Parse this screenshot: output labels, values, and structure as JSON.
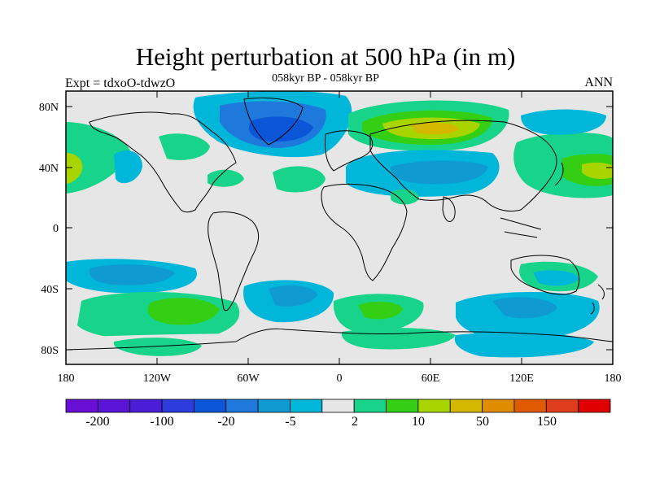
{
  "title": "Height perturbation at 500 hPa (in m)",
  "subtitle": "058kyr BP - 058kyr BP",
  "left_label": "Expt = tdxoO-tdwzO",
  "right_label": "ANN",
  "lat_ticks": [
    "80N",
    "40N",
    "0",
    "40S",
    "80S"
  ],
  "lon_ticks": [
    "180",
    "120W",
    "60W",
    "0",
    "60E",
    "120E",
    "180"
  ],
  "colorbar": {
    "colors": [
      "#6a0fd6",
      "#5a14d8",
      "#4a1ed6",
      "#2d3cdc",
      "#0a55d8",
      "#1f78dc",
      "#0f9ad2",
      "#00b7d9",
      "#e6e6e6",
      "#18d48a",
      "#34cf14",
      "#a8d400",
      "#d4b800",
      "#e08c00",
      "#e05a00",
      "#e03c1e",
      "#e00000"
    ],
    "labels": [
      "-200",
      "-100",
      "-20",
      "-5",
      "2",
      "10",
      "50",
      "150"
    ]
  },
  "map": {
    "background": "#e6e6e6",
    "land_outline": "#000000"
  }
}
